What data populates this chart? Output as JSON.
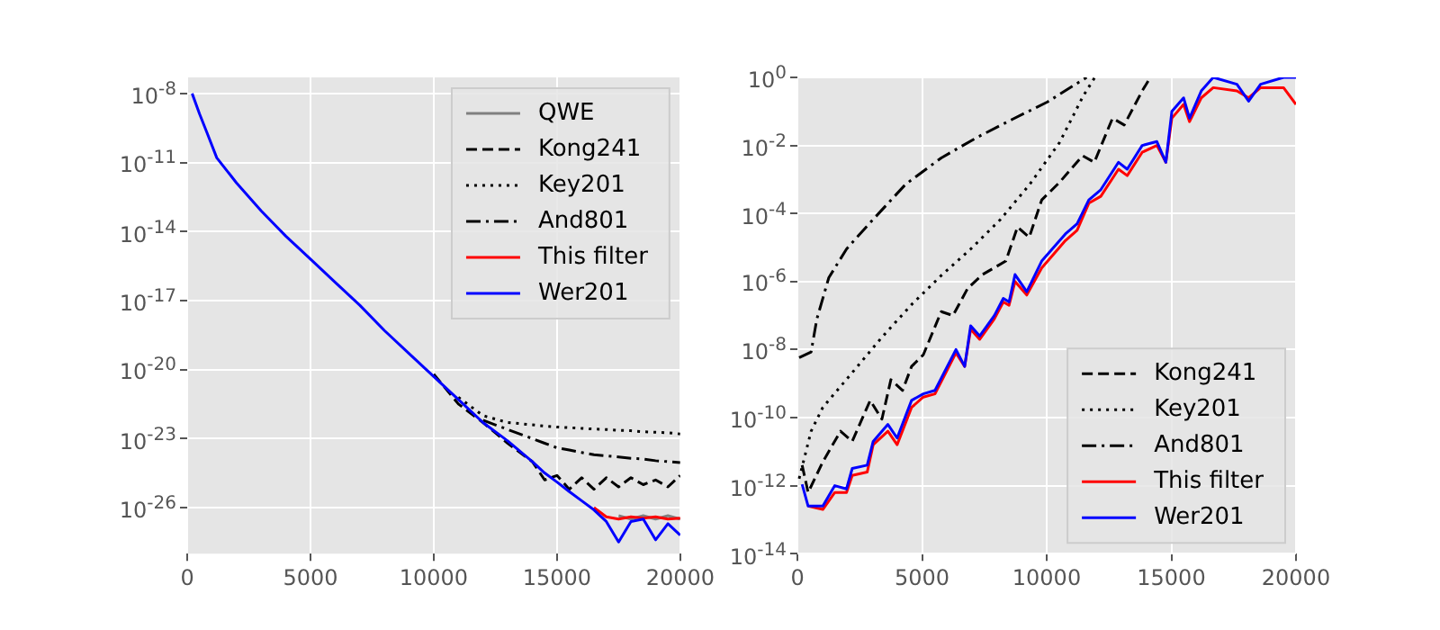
{
  "chart_data": [
    {
      "type": "line",
      "log": "y",
      "grid": true,
      "legend": "top right",
      "xlim": [
        0,
        20000
      ],
      "xticks": [
        0,
        5000,
        10000,
        15000,
        20000
      ],
      "ylim": [
        1e-28,
        5e-08
      ],
      "yticks": [
        {
          "value": 1e-08,
          "label": "10$^{-8}$"
        },
        {
          "value": 1e-11,
          "label": "10$^{-11}$"
        },
        {
          "value": 1e-14,
          "label": "10$^{-14}$"
        },
        {
          "value": 1e-17,
          "label": "10$^{-17}$"
        },
        {
          "value": 1e-20,
          "label": "10$^{-20}$"
        },
        {
          "value": 1e-23,
          "label": "10$^{-23}$"
        },
        {
          "value": 1e-26,
          "label": "10$^{-26}$"
        }
      ],
      "x": [
        200,
        500,
        800,
        1200,
        2000,
        3000,
        4000,
        5000,
        6000,
        7000,
        8000,
        9000,
        10000,
        11000,
        12000,
        13000,
        14000,
        14500,
        15000,
        15500,
        16000,
        16500,
        17000,
        17500,
        18000,
        18500,
        19000,
        19500,
        20000
      ],
      "series": [
        {
          "name": "QWE",
          "color": "#808080",
          "line_style": "solid",
          "values": [
            null,
            null,
            null,
            null,
            null,
            null,
            null,
            null,
            null,
            null,
            null,
            null,
            null,
            null,
            null,
            null,
            null,
            null,
            null,
            null,
            null,
            null,
            null,
            4.5e-27,
            3.2e-27,
            4.5e-27,
            3.2e-27,
            4.5e-27,
            3.2e-27
          ]
        },
        {
          "name": "Kong241",
          "color": "#000000",
          "line_style": "dashed",
          "values": [
            null,
            null,
            null,
            null,
            null,
            null,
            null,
            null,
            null,
            null,
            null,
            null,
            6.3e-21,
            3.2e-22,
            5e-23,
            6.3e-24,
            1e-24,
            1.6e-25,
            2.5e-25,
            6.3e-26,
            2e-25,
            6.3e-26,
            2e-25,
            8e-26,
            2e-25,
            1e-25,
            1.6e-25,
            8e-26,
            2.5e-25
          ]
        },
        {
          "name": "Key201",
          "color": "#000000",
          "line_style": "dotted",
          "values": [
            null,
            null,
            null,
            null,
            null,
            null,
            null,
            null,
            null,
            null,
            null,
            null,
            null,
            6.3e-22,
            1e-22,
            5e-23,
            4e-23,
            3.5e-23,
            3.2e-23,
            3e-23,
            2.8e-23,
            2.6e-23,
            2.5e-23,
            2.3e-23,
            2.2e-23,
            2e-23,
            1.9e-23,
            1.8e-23,
            1.6e-23
          ]
        },
        {
          "name": "And801",
          "color": "#000000",
          "line_style": "dashdot",
          "values": [
            null,
            null,
            null,
            null,
            null,
            null,
            null,
            null,
            null,
            null,
            null,
            null,
            null,
            null,
            6.3e-23,
            2.5e-23,
            1e-23,
            6.3e-24,
            4e-24,
            3.2e-24,
            2.5e-24,
            2e-24,
            1.8e-24,
            1.6e-24,
            1.4e-24,
            1.3e-24,
            1.1e-24,
            1e-24,
            9e-25
          ]
        },
        {
          "name": "This filter",
          "color": "#ff0000",
          "line_style": "solid",
          "values": [
            null,
            null,
            null,
            null,
            null,
            null,
            null,
            null,
            null,
            null,
            null,
            null,
            null,
            null,
            null,
            null,
            null,
            null,
            null,
            null,
            null,
            1e-26,
            4e-27,
            3.2e-27,
            4e-27,
            3.5e-27,
            4e-27,
            3.2e-27,
            3.5e-27
          ]
        },
        {
          "name": "Wer201",
          "color": "#0000ff",
          "line_style": "solid",
          "values": [
            1e-08,
            1.3e-09,
            2e-10,
            1.6e-11,
            1.3e-12,
            8e-14,
            6.3e-15,
            6.3e-16,
            6.3e-17,
            6.3e-18,
            5e-19,
            5e-20,
            5e-21,
            5e-22,
            5e-23,
            8e-24,
            1e-24,
            3.2e-25,
            1.3e-25,
            5e-26,
            2e-26,
            8e-27,
            2.5e-27,
            3.2e-28,
            2.5e-27,
            3.2e-27,
            4e-28,
            2e-27,
            6.3e-28
          ]
        }
      ]
    },
    {
      "type": "line",
      "log": "y",
      "grid": true,
      "legend": "bottom right",
      "xlim": [
        0,
        20000
      ],
      "xticks": [
        0,
        5000,
        10000,
        15000,
        20000
      ],
      "ylim": [
        1e-14,
        1
      ],
      "yticks": [
        {
          "value": 1e-14,
          "label": "10$^{-14}$"
        },
        {
          "value": 1e-12,
          "label": "10$^{-12}$"
        },
        {
          "value": 1e-10,
          "label": "10$^{-10}$"
        },
        {
          "value": 1e-08,
          "label": "10$^{-8}$"
        },
        {
          "value": 1e-06,
          "label": "10$^{-6}$"
        },
        {
          "value": 0.0001,
          "label": "10$^{-4}$"
        },
        {
          "value": 0.01,
          "label": "10$^{-2}$"
        },
        {
          "value": 1,
          "label": "10$^{0}$"
        }
      ],
      "series": [
        {
          "name": "Kong241",
          "color": "#000000",
          "line_style": "dashed",
          "x": [
            190,
            430,
            1020,
            1730,
            2200,
            2920,
            3390,
            3750,
            4220,
            4580,
            5050,
            5770,
            6240,
            6830,
            7420,
            8360,
            8830,
            9300,
            9800,
            10500,
            11440,
            11910,
            12640,
            13110,
            13830,
            14160
          ],
          "values": [
            4e-12,
            6.3e-13,
            5e-12,
            4e-11,
            2e-11,
            3.2e-10,
            9e-11,
            1.3e-09,
            6.3e-10,
            3.2e-09,
            7e-09,
            1.3e-07,
            1e-07,
            6.3e-07,
            1.6e-06,
            4e-06,
            4e-05,
            2e-05,
            0.00025,
            0.0008,
            0.005,
            0.0032,
            0.063,
            0.04,
            0.4,
            1
          ]
        },
        {
          "name": "Key201",
          "color": "#000000",
          "line_style": "dotted",
          "x": [
            70,
            550,
            1020,
            2200,
            3390,
            4580,
            5770,
            6950,
            8140,
            9320,
            10510,
            11460,
            11930
          ],
          "values": [
            1.6e-12,
            4e-11,
            2e-10,
            2.1e-09,
            2.3e-08,
            2.1e-07,
            1.5e-06,
            9e-06,
            6.6e-05,
            0.00072,
            0.012,
            0.28,
            1
          ]
        },
        {
          "name": "And801",
          "color": "#000000",
          "line_style": "dashdot",
          "x": [
            70,
            550,
            780,
            1260,
            1970,
            2920,
            4340,
            5770,
            7190,
            8610,
            10030,
            11600
          ],
          "values": [
            5.8e-09,
            8.5e-09,
            7.9e-08,
            1.3e-06,
            9e-06,
            5.4e-05,
            0.00072,
            0.0043,
            0.017,
            0.058,
            0.19,
            1
          ]
        },
        {
          "name": "This filter",
          "color": "#ff0000",
          "line_style": "solid",
          "x": [
            430,
            1020,
            1500,
            1970,
            2200,
            2800,
            3040,
            3630,
            4000,
            4580,
            5050,
            5520,
            6360,
            6710,
            6950,
            7310,
            7900,
            8260,
            8490,
            8730,
            9200,
            9800,
            10750,
            11220,
            11690,
            12170,
            12880,
            13230,
            13830,
            14420,
            14780,
            15020,
            15490,
            15730,
            16200,
            16680,
            17630,
            18100,
            18580,
            19500,
            20000
          ],
          "values": [
            2.5e-13,
            2e-13,
            6.3e-13,
            6.3e-13,
            2e-12,
            2.5e-12,
            1.6e-11,
            4e-11,
            1.6e-11,
            2e-10,
            4e-10,
            5e-10,
            8e-09,
            3.2e-09,
            4e-08,
            2e-08,
            8e-08,
            2.5e-07,
            2e-07,
            1e-06,
            4e-07,
            2.5e-06,
            1.6e-05,
            3.2e-05,
            0.0002,
            0.00032,
            0.002,
            0.0013,
            0.0063,
            0.01,
            0.0032,
            0.063,
            0.16,
            0.05,
            0.25,
            0.5,
            0.4,
            0.25,
            0.5,
            0.5,
            0.16
          ]
        },
        {
          "name": "Wer201",
          "color": "#0000ff",
          "line_style": "solid",
          "x": [
            190,
            430,
            1020,
            1500,
            1970,
            2200,
            2800,
            3040,
            3630,
            4000,
            4580,
            5050,
            5520,
            6360,
            6710,
            6950,
            7310,
            7900,
            8260,
            8490,
            8730,
            9200,
            9800,
            10750,
            11220,
            11690,
            12170,
            12880,
            13230,
            13830,
            14420,
            14780,
            15020,
            15490,
            15730,
            16200,
            16680,
            17630,
            18100,
            18580,
            19500,
            20000
          ],
          "values": [
            1.1e-12,
            2.5e-13,
            2.5e-13,
            1e-12,
            8e-13,
            3.2e-12,
            4e-12,
            2e-11,
            6.3e-11,
            2.5e-11,
            3.2e-10,
            5e-10,
            6.3e-10,
            1e-08,
            3.2e-09,
            5e-08,
            2.5e-08,
            1e-07,
            3.2e-07,
            2.5e-07,
            1.6e-06,
            5e-07,
            4e-06,
            2.5e-05,
            5e-05,
            0.00025,
            0.0005,
            0.0032,
            0.002,
            0.01,
            0.013,
            0.0032,
            0.1,
            0.25,
            0.063,
            0.4,
            1,
            0.63,
            0.2,
            0.63,
            1,
            1
          ]
        }
      ]
    }
  ]
}
